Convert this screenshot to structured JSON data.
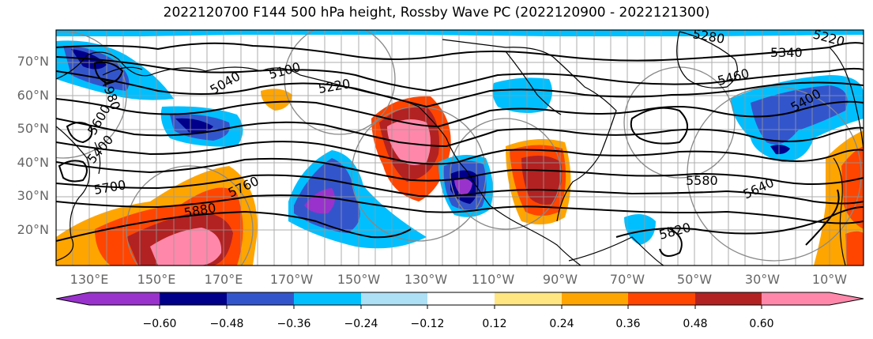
{
  "title": "2022120700 F144 500 hPa height, Rossby Wave PC (2022120900 - 2022121300)",
  "lat_labels": [
    "70°N",
    "60°N",
    "50°N",
    "40°N",
    "30°N",
    "20°N"
  ],
  "lon_labels": [
    "130°E",
    "150°E",
    "170°E",
    "170°W",
    "150°W",
    "130°W",
    "110°W",
    "90°W",
    "70°W",
    "50°W",
    "30°W",
    "10°W"
  ],
  "colorbar": {
    "ticks": [
      "−0.60",
      "−0.48",
      "−0.36",
      "−0.24",
      "−0.12",
      "0.12",
      "0.24",
      "0.36",
      "0.48",
      "0.60"
    ],
    "colors": [
      "#9932CC",
      "#00008B",
      "#3355CC",
      "#00BFFF",
      "#ADDFF5",
      "#FFFFFF",
      "#FFE680",
      "#FFA500",
      "#FF4500",
      "#B22222",
      "#FF88AA"
    ]
  },
  "contour_labels": {
    "c4980": "4980",
    "c5040": "5040",
    "c5100": "5100",
    "c5220": "5220",
    "c5280": "5280",
    "c5220b": "5220",
    "c5340": "5340",
    "c5460": "5460",
    "c5400": "5400",
    "c5580": "5580",
    "c5640": "5640",
    "c5820": "5820",
    "c5880": "5880",
    "c5760": "5760",
    "c5700": "5700",
    "c5400w": "5400",
    "c5600w": "5600"
  }
}
